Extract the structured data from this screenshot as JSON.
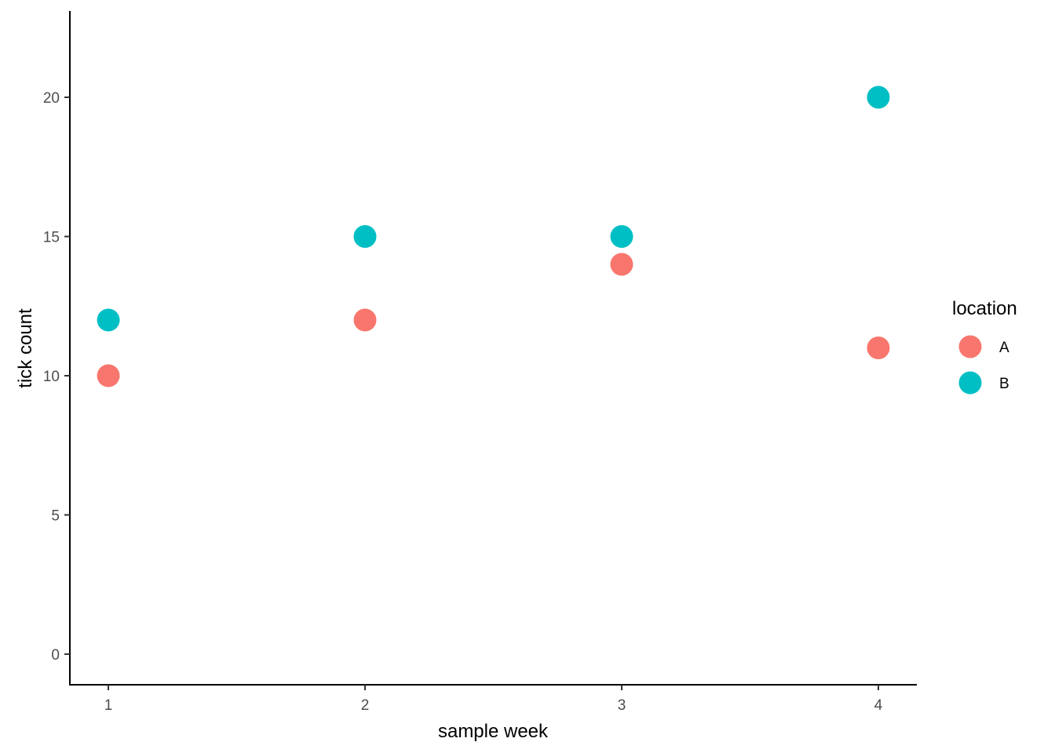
{
  "chart_data": {
    "type": "scatter",
    "xlabel": "sample week",
    "ylabel": "tick count",
    "x": [
      1,
      2,
      3,
      4
    ],
    "x_ticks": [
      "1",
      "2",
      "3",
      "4"
    ],
    "y_ticks": [
      "0",
      "5",
      "10",
      "15",
      "20"
    ],
    "xlim": [
      0.85,
      4.15
    ],
    "ylim": [
      -1.1,
      23.1
    ],
    "grid": false,
    "legend": {
      "title": "location",
      "position": "right"
    },
    "series": [
      {
        "name": "A",
        "color": "#F8766D",
        "values": [
          10,
          12,
          14,
          11
        ]
      },
      {
        "name": "B",
        "color": "#00BFC4",
        "values": [
          12,
          15,
          15,
          20
        ]
      }
    ]
  }
}
